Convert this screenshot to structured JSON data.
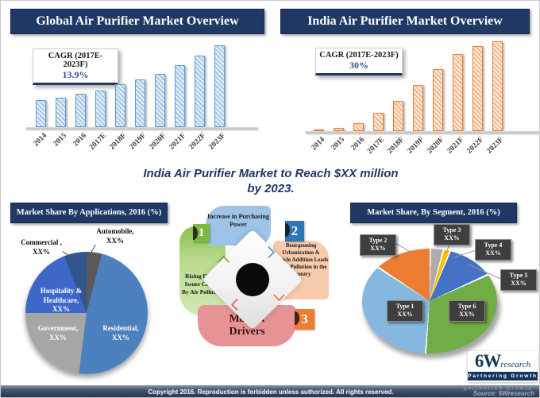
{
  "page": {
    "headline_line1": "India Air Purifier Market to Reach $XX million",
    "headline_line2": "by 2023.",
    "footer": "Copyright 2016. Reproduction is forbidden unless authorized. All rights reserved.",
    "source": "Source: 6Wresearch",
    "accent_navy": "#1F3864"
  },
  "global_chart": {
    "title": "Global Air Purifier Market Overview",
    "cagr_label": "CAGR (2017E-2023F)",
    "cagr_value": "13.9%"
  },
  "india_chart": {
    "title": "India Air Purifier Market Overview",
    "cagr_label": "CAGR (2017E-2023F)",
    "cagr_value": "30%"
  },
  "applications_chart": {
    "title": "Market Share By Applications, 2016 (%)"
  },
  "segment_chart": {
    "title": "Market Share, By Segment, 2016 (%)"
  },
  "drivers": {
    "title": "Market\nDrivers",
    "title_bg": "#E89393",
    "center_color": "#0A0A0A",
    "items": [
      {
        "num": "1",
        "text": "Rising Health Issues Caused By Air Pollution",
        "color": "#7DB842",
        "body_color": "#C9E3A8"
      },
      {
        "num": "2",
        "text": "Increase in Purchasing Power",
        "color": "#2E75B6",
        "body_color": "#9DC3E6"
      },
      {
        "num": "3",
        "text": "Bourgeoning Urbanization & Vehicle Addition Leads to Air Pollution in the Country",
        "color": "#ED7D31",
        "body_color": "#F8CBAD"
      }
    ],
    "chevrons": [
      {
        "dir": "up",
        "color": "#70AD47"
      },
      {
        "dir": "right",
        "color": "#5B9BD5"
      },
      {
        "dir": "down",
        "color": "#ED7D31"
      },
      {
        "dir": "left",
        "color": "#E06666"
      }
    ]
  },
  "logo": {
    "brand": "6W",
    "suffix": "research",
    "tagline": "Partnering Growth"
  },
  "chart_data": [
    {
      "type": "bar",
      "title": "Global Air Purifier Market Overview",
      "cagr": "CAGR (2017E-2023F) 13.9%",
      "categories": [
        "2014",
        "2015",
        "2016",
        "2017E",
        "2018F",
        "2019F",
        "2020F",
        "2021F",
        "2022F",
        "2023F"
      ],
      "values": [
        33,
        36,
        41,
        45,
        52,
        58,
        65,
        76,
        87,
        100
      ],
      "xlabel": "",
      "ylabel": "",
      "axis_note": "no y-axis shown; values are relative size estimates (2023F = 100)",
      "colors": {
        "fill": "#DEEBF7",
        "hatch": "#9DC3E6",
        "border": "#5B9BD5"
      }
    },
    {
      "type": "bar",
      "title": "India Air Purifier Market Overview",
      "cagr": "CAGR (2017E-2023F) 30%",
      "categories": [
        "2014",
        "2015",
        "2016",
        "2017E",
        "2018F",
        "2019F",
        "2020F",
        "2021F",
        "2022F",
        "2023F"
      ],
      "values": [
        2,
        4,
        9,
        20,
        34,
        51,
        69,
        86,
        95,
        100
      ],
      "xlabel": "",
      "ylabel": "",
      "axis_note": "no y-axis shown; values are relative size estimates (2023F = 100)",
      "colors": {
        "fill": "#FBE5D6",
        "hatch": "#F4B183",
        "border": "#ED7D31"
      }
    },
    {
      "type": "pie",
      "title": "Market Share By Applications, 2016 (%)",
      "axis_note": "data labels show XX% placeholders; values are angular share estimates",
      "slices": [
        {
          "name": "Automobile",
          "label": "Automobile,\nXX%",
          "value": 4,
          "color": "#595959"
        },
        {
          "name": "Residential",
          "label": "Residential,\nXX%",
          "value": 48,
          "color": "#4C80BE"
        },
        {
          "name": "Government",
          "label": "Government,\nXX%",
          "value": 23,
          "color": "#A6A6A6"
        },
        {
          "name": "Hospitality & Healthcare",
          "label": "Hospitality &\nHealthcare,\nXX%",
          "value": 19,
          "color": "#3E68C8"
        },
        {
          "name": "Commercial",
          "label": "Commercial ,\nXX%",
          "value": 6,
          "color": "#31568F"
        }
      ]
    },
    {
      "type": "pie",
      "title": "Market Share, By Segment, 2016 (%)",
      "gap": 1.6,
      "axis_note": "data labels show XX% placeholders; values are angular share estimates",
      "slices": [
        {
          "name": "Type 3",
          "label": "Type 3\nXX%",
          "value": 4,
          "color": "#ADADAD"
        },
        {
          "name": "Type 4",
          "label": "Type 4\nXX%",
          "value": 2,
          "color": "#FFC000"
        },
        {
          "name": "Type 5",
          "label": "Type 5\nXX%",
          "value": 12,
          "color": "#4472C4"
        },
        {
          "name": "Type 6",
          "label": "Type 6\nXX%",
          "value": 33,
          "color": "#70AD47"
        },
        {
          "name": "Type 1",
          "label": "Type 1\nXX%",
          "value": 33,
          "color": "#86B8DF"
        },
        {
          "name": "Type 2",
          "label": "Type 2\nXX%",
          "value": 16,
          "color": "#ED7D31"
        }
      ]
    }
  ]
}
